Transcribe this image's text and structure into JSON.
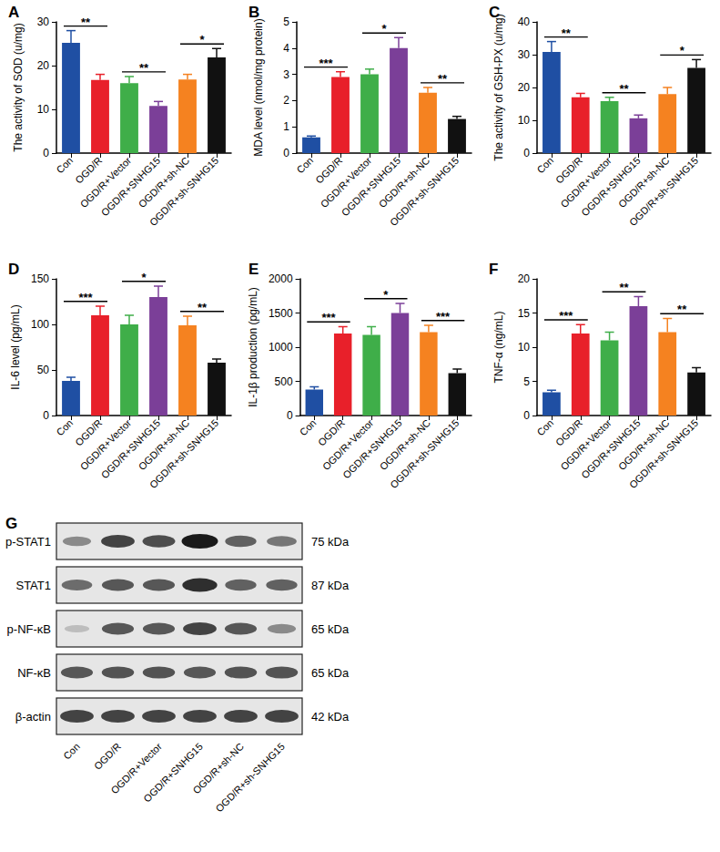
{
  "chart_data": [
    {
      "type": "bar",
      "title": "A",
      "y_label": "The activity of SOD (u/mg)",
      "categories": [
        "Con",
        "OGD/R",
        "OGD/R+Vector",
        "OGD/R+SNHG15",
        "OGD/R+sh-NC",
        "OGD/R+sh-SNHG15"
      ],
      "values": [
        25.2,
        16.7,
        16.0,
        10.8,
        16.8,
        21.9
      ],
      "errors": [
        2.8,
        1.3,
        1.5,
        1.0,
        1.2,
        2.0
      ],
      "colors": [
        "#1f4fa3",
        "#e8202a",
        "#3fae49",
        "#7b3f98",
        "#f58220",
        "#111111"
      ],
      "ylim": [
        0,
        30
      ],
      "yticks": [
        0,
        10,
        20,
        30
      ],
      "grid": false,
      "significance": [
        {
          "from": "Con",
          "to": "OGD/R",
          "label": "**"
        },
        {
          "from": "OGD/R+Vector",
          "to": "OGD/R+SNHG15",
          "label": "**"
        },
        {
          "from": "OGD/R+sh-NC",
          "to": "OGD/R+sh-SNHG15",
          "label": "*"
        }
      ]
    },
    {
      "type": "bar",
      "title": "B",
      "y_label": "MDA level (nmol/mg protein)",
      "categories": [
        "Con",
        "OGD/R",
        "OGD/R+Vector",
        "OGD/R+SNHG15",
        "OGD/R+sh-NC",
        "OGD/R+sh-SNHG15"
      ],
      "values": [
        0.6,
        2.9,
        3.0,
        4.0,
        2.3,
        1.3
      ],
      "errors": [
        0.05,
        0.2,
        0.2,
        0.4,
        0.2,
        0.1
      ],
      "colors": [
        "#1f4fa3",
        "#e8202a",
        "#3fae49",
        "#7b3f98",
        "#f58220",
        "#111111"
      ],
      "ylim": [
        0,
        5
      ],
      "yticks": [
        0,
        1,
        2,
        3,
        4,
        5
      ],
      "grid": false,
      "significance": [
        {
          "from": "Con",
          "to": "OGD/R",
          "label": "***"
        },
        {
          "from": "OGD/R+Vector",
          "to": "OGD/R+SNHG15",
          "label": "*"
        },
        {
          "from": "OGD/R+sh-NC",
          "to": "OGD/R+sh-SNHG15",
          "label": "**"
        }
      ]
    },
    {
      "type": "bar",
      "title": "C",
      "y_label": "The activity of GSH-PX (u/mg)",
      "categories": [
        "Con",
        "OGD/R",
        "OGD/R+Vector",
        "OGD/R+SNHG15",
        "OGD/R+sh-NC",
        "OGD/R+sh-SNHG15"
      ],
      "values": [
        30.8,
        17.0,
        15.8,
        10.6,
        18.0,
        26.0
      ],
      "errors": [
        3.2,
        1.2,
        1.2,
        1.0,
        2.0,
        2.5
      ],
      "colors": [
        "#1f4fa3",
        "#e8202a",
        "#3fae49",
        "#7b3f98",
        "#f58220",
        "#111111"
      ],
      "ylim": [
        0,
        40
      ],
      "yticks": [
        0,
        10,
        20,
        30,
        40
      ],
      "grid": false,
      "significance": [
        {
          "from": "Con",
          "to": "OGD/R",
          "label": "**"
        },
        {
          "from": "OGD/R+Vector",
          "to": "OGD/R+SNHG15",
          "label": "**"
        },
        {
          "from": "OGD/R+sh-NC",
          "to": "OGD/R+sh-SNHG15",
          "label": "*"
        }
      ]
    },
    {
      "type": "bar",
      "title": "D",
      "y_label": "IL-6 level (pg/mL)",
      "categories": [
        "Con",
        "OGD/R",
        "OGD/R+Vector",
        "OGD/R+SNHG15",
        "OGD/R+sh-NC",
        "OGD/R+sh-SNHG15"
      ],
      "values": [
        38,
        110,
        100,
        130,
        99,
        58
      ],
      "errors": [
        4,
        10,
        10,
        12,
        10,
        4
      ],
      "colors": [
        "#1f4fa3",
        "#e8202a",
        "#3fae49",
        "#7b3f98",
        "#f58220",
        "#111111"
      ],
      "ylim": [
        0,
        150
      ],
      "yticks": [
        0,
        50,
        100,
        150
      ],
      "grid": false,
      "significance": [
        {
          "from": "Con",
          "to": "OGD/R",
          "label": "***"
        },
        {
          "from": "OGD/R+Vector",
          "to": "OGD/R+SNHG15",
          "label": "*"
        },
        {
          "from": "OGD/R+sh-NC",
          "to": "OGD/R+sh-SNHG15",
          "label": "**"
        }
      ]
    },
    {
      "type": "bar",
      "title": "E",
      "y_label": "IL-1β production (pg/mL)",
      "categories": [
        "Con",
        "OGD/R",
        "OGD/R+Vector",
        "OGD/R+SNHG15",
        "OGD/R+sh-NC",
        "OGD/R+sh-SNHG15"
      ],
      "values": [
        380,
        1200,
        1180,
        1500,
        1220,
        620
      ],
      "errors": [
        40,
        100,
        120,
        140,
        100,
        60
      ],
      "colors": [
        "#1f4fa3",
        "#e8202a",
        "#3fae49",
        "#7b3f98",
        "#f58220",
        "#111111"
      ],
      "ylim": [
        0,
        2000
      ],
      "yticks": [
        0,
        500,
        1000,
        1500,
        2000
      ],
      "grid": false,
      "significance": [
        {
          "from": "Con",
          "to": "OGD/R",
          "label": "***"
        },
        {
          "from": "OGD/R+Vector",
          "to": "OGD/R+SNHG15",
          "label": "*"
        },
        {
          "from": "OGD/R+sh-NC",
          "to": "OGD/R+sh-SNHG15",
          "label": "***"
        }
      ]
    },
    {
      "type": "bar",
      "title": "F",
      "y_label": "TNF-α (ng/mL)",
      "categories": [
        "Con",
        "OGD/R",
        "OGD/R+Vector",
        "OGD/R+SNHG15",
        "OGD/R+sh-NC",
        "OGD/R+sh-SNHG15"
      ],
      "values": [
        3.4,
        12.0,
        11.0,
        16.0,
        12.2,
        6.3
      ],
      "errors": [
        0.3,
        1.3,
        1.2,
        1.4,
        2.0,
        0.7
      ],
      "colors": [
        "#1f4fa3",
        "#e8202a",
        "#3fae49",
        "#7b3f98",
        "#f58220",
        "#111111"
      ],
      "ylim": [
        0,
        20
      ],
      "yticks": [
        0,
        5,
        10,
        15,
        20
      ],
      "grid": false,
      "significance": [
        {
          "from": "Con",
          "to": "OGD/R",
          "label": "***"
        },
        {
          "from": "OGD/R+Vector",
          "to": "OGD/R+SNHG15",
          "label": "**"
        },
        {
          "from": "OGD/R+sh-NC",
          "to": "OGD/R+sh-SNHG15",
          "label": "**"
        }
      ]
    }
  ],
  "blot": {
    "title": "G",
    "lanes": [
      "Con",
      "OGD/R",
      "OGD/R+Vector",
      "OGD/R+SNHG15",
      "OGD/R+sh-NC",
      "OGD/R+sh-SNHG15"
    ],
    "rows": [
      {
        "label": "p-STAT1",
        "size": "75 kDa",
        "intensities": [
          0.45,
          0.8,
          0.75,
          1.0,
          0.65,
          0.55
        ]
      },
      {
        "label": "STAT1",
        "size": "87 kDa",
        "intensities": [
          0.6,
          0.7,
          0.7,
          0.9,
          0.65,
          0.65
        ]
      },
      {
        "label": "p-NF-κB",
        "size": "65 kDa",
        "intensities": [
          0.2,
          0.7,
          0.7,
          0.8,
          0.7,
          0.45
        ]
      },
      {
        "label": "NF-κB",
        "size": "65 kDa",
        "intensities": [
          0.7,
          0.72,
          0.72,
          0.7,
          0.72,
          0.72
        ]
      },
      {
        "label": "β-actin",
        "size": "42 kDa",
        "intensities": [
          0.8,
          0.8,
          0.8,
          0.8,
          0.8,
          0.8
        ]
      }
    ]
  }
}
